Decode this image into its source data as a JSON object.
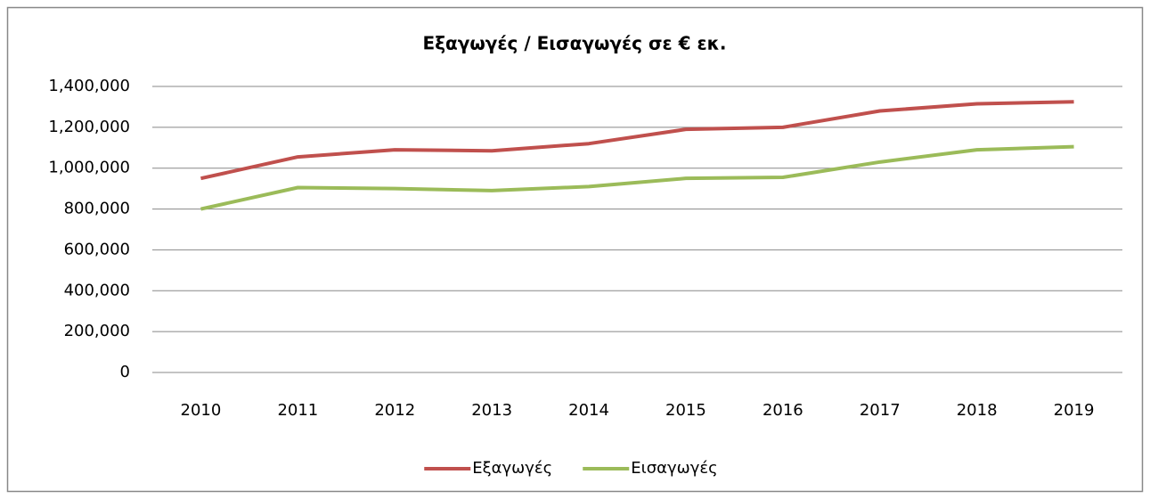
{
  "chart_data": {
    "type": "line",
    "title": "Εξαγωγές / Εισαγωγές σε € εκ.",
    "categories": [
      "2010",
      "2011",
      "2012",
      "2013",
      "2014",
      "2015",
      "2016",
      "2017",
      "2018",
      "2019"
    ],
    "series": [
      {
        "name": "Εξαγωγές",
        "color": "#c0504d",
        "values": [
          950000,
          1055000,
          1090000,
          1085000,
          1120000,
          1190000,
          1200000,
          1280000,
          1315000,
          1325000
        ]
      },
      {
        "name": "Εισαγωγές",
        "color": "#9bbb59",
        "values": [
          800000,
          905000,
          900000,
          890000,
          910000,
          950000,
          955000,
          1030000,
          1090000,
          1105000
        ]
      }
    ],
    "ylim": [
      0,
      1400000
    ],
    "yticks": [
      0,
      {
        "value": 200000,
        "label": "200,000"
      },
      {
        "value": 400000,
        "label": "400,000"
      },
      {
        "value": 600000,
        "label": "600,000"
      },
      {
        "value": 800000,
        "label": "800,000"
      },
      {
        "value": 1000000,
        "label": "1,000,000"
      },
      {
        "value": 1200000,
        "label": "1,200,000"
      },
      {
        "value": 1400000,
        "label": "1,400,000"
      }
    ],
    "grid": true,
    "legend": "bottom"
  }
}
